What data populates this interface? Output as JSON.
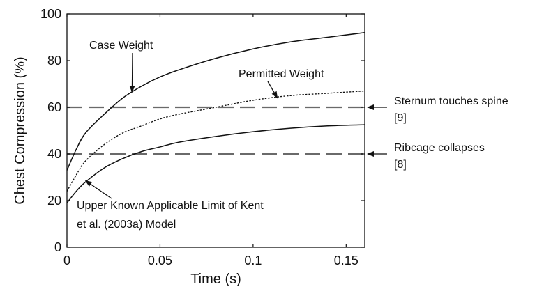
{
  "chart_data": {
    "type": "line",
    "title": "",
    "xlabel": "Time (s)",
    "ylabel": "Chest Compression (%)",
    "xlim": [
      0,
      0.16
    ],
    "ylim": [
      0,
      100
    ],
    "grid": false,
    "x_ticks": [
      {
        "value": 0,
        "label": "0"
      },
      {
        "value": 0.05,
        "label": "0.05"
      },
      {
        "value": 0.1,
        "label": "0.1"
      },
      {
        "value": 0.15,
        "label": "0.15"
      }
    ],
    "y_ticks": [
      {
        "value": 0,
        "label": "0"
      },
      {
        "value": 20,
        "label": "20"
      },
      {
        "value": 40,
        "label": "40"
      },
      {
        "value": 60,
        "label": "60"
      },
      {
        "value": 80,
        "label": "80"
      },
      {
        "value": 100,
        "label": "100"
      }
    ],
    "series": [
      {
        "name": "Case Weight",
        "style": "solid",
        "x": [
          0,
          0.005,
          0.01,
          0.02,
          0.03,
          0.04,
          0.05,
          0.06,
          0.08,
          0.1,
          0.12,
          0.14,
          0.16
        ],
        "y": [
          33,
          42,
          49,
          57,
          64,
          69,
          73,
          76,
          81,
          85,
          88,
          90,
          92
        ]
      },
      {
        "name": "Permitted Weight",
        "style": "dotted",
        "x": [
          0,
          0.005,
          0.01,
          0.02,
          0.03,
          0.04,
          0.05,
          0.06,
          0.08,
          0.1,
          0.12,
          0.14,
          0.16
        ],
        "y": [
          24,
          31,
          37,
          44,
          49,
          52,
          55,
          57,
          60,
          63,
          65,
          66,
          67
        ]
      },
      {
        "name": "Upper Known Applicable Limit of Kent et al. (2003a) Model",
        "style": "solid",
        "x": [
          0,
          0.005,
          0.01,
          0.02,
          0.03,
          0.04,
          0.05,
          0.06,
          0.08,
          0.1,
          0.12,
          0.14,
          0.16
        ],
        "y": [
          19,
          24,
          28,
          34,
          38,
          41,
          43,
          45,
          47.5,
          49.5,
          51,
          52,
          52.5
        ]
      }
    ],
    "reference_lines": [
      {
        "y": 60,
        "style": "dashed",
        "label": "Sternum touches spine",
        "ref": "[9]"
      },
      {
        "y": 40,
        "style": "dashed",
        "label": "Ribcage collapses",
        "ref": "[8]"
      }
    ],
    "annotations": [
      {
        "text": "Case Weight",
        "points_to": {
          "x": 0.035,
          "y": 66.5
        }
      },
      {
        "text": "Permitted Weight",
        "points_to": {
          "x": 0.113,
          "y": 64
        }
      },
      {
        "line1": "Upper Known Applicable Limit of Kent",
        "line2": "et al. (2003a) Model",
        "points_to": {
          "x": 0.01,
          "y": 28.5
        }
      }
    ]
  }
}
